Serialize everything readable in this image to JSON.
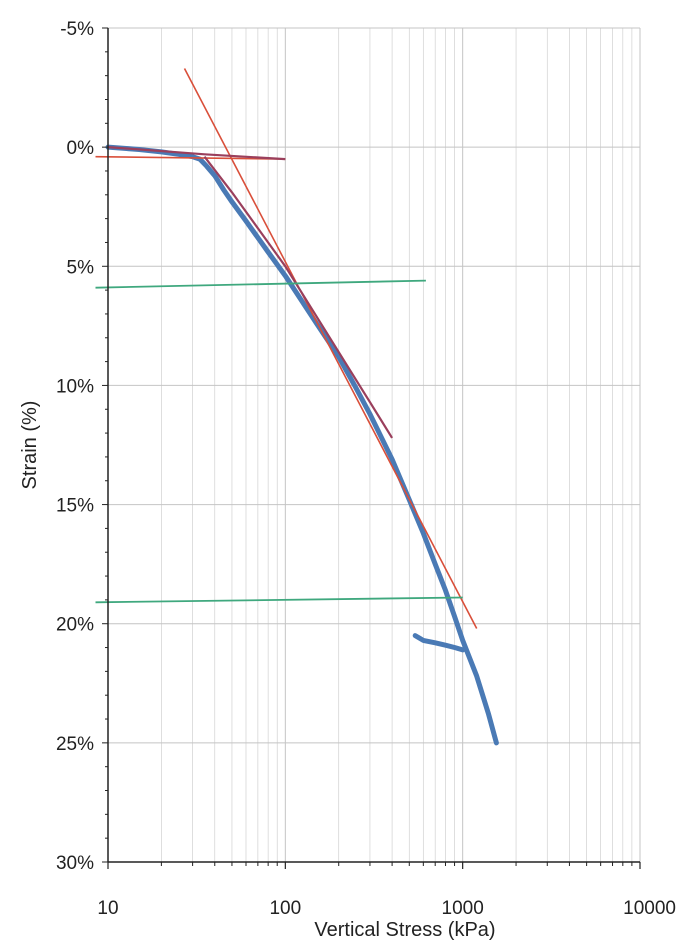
{
  "chart_data": {
    "type": "scatter",
    "title": "",
    "xlabel": "Vertical Stress (kPa)",
    "ylabel": "Strain (%)",
    "x_scale": "log",
    "xlim": [
      10,
      10000
    ],
    "ylim": [
      -5,
      30
    ],
    "y_reversed": true,
    "grid": true,
    "x_ticks": [
      10,
      100,
      1000,
      10000
    ],
    "x_tick_labels": [
      "10",
      "100",
      "1000",
      "10000"
    ],
    "y_ticks": [
      -5,
      0,
      5,
      10,
      15,
      20,
      25,
      30
    ],
    "y_tick_labels": [
      "-5%",
      "0%",
      "5%",
      "10%",
      "15%",
      "20%",
      "25%",
      "30%"
    ],
    "colors": {
      "data": "#4a7ab5",
      "fit_red": "#d94f3a",
      "fit_dark": "#9a3f5c",
      "fit_green": "#3fa87e",
      "grid": "#d0d0d0",
      "axis": "#222222"
    },
    "series": [
      {
        "style": "data",
        "x": [
          10,
          15,
          20,
          25,
          30,
          33,
          36,
          40,
          45,
          50,
          60,
          70,
          80,
          100,
          120,
          150,
          200,
          250,
          300,
          400,
          500,
          600,
          700,
          800,
          900,
          1000,
          1200,
          1400,
          1550
        ],
        "y": [
          0.0,
          0.1,
          0.2,
          0.3,
          0.4,
          0.5,
          0.8,
          1.2,
          1.8,
          2.3,
          3.1,
          3.8,
          4.4,
          5.4,
          6.3,
          7.4,
          8.8,
          10.1,
          11.2,
          13.1,
          14.8,
          16.2,
          17.5,
          18.6,
          19.7,
          20.7,
          22.2,
          23.8,
          25.0
        ]
      },
      {
        "style": "data",
        "x": [
          540,
          600,
          700,
          800,
          900,
          1000
        ],
        "y": [
          20.5,
          20.7,
          20.8,
          20.9,
          21.0,
          21.1
        ]
      },
      {
        "style": "fit_red",
        "x": [
          27,
          1200
        ],
        "y": [
          -3.3,
          20.2
        ]
      },
      {
        "style": "fit_red",
        "x": [
          8.5,
          100
        ],
        "y": [
          0.4,
          0.5
        ]
      },
      {
        "style": "fit_dark",
        "x": [
          10,
          35,
          100
        ],
        "y": [
          0.0,
          0.3,
          0.5
        ]
      },
      {
        "style": "fit_dark",
        "x": [
          35,
          50,
          100,
          200,
          300,
          400
        ],
        "y": [
          0.4,
          1.9,
          5.0,
          8.6,
          10.7,
          12.2
        ]
      },
      {
        "style": "fit_green",
        "x": [
          8.5,
          620
        ],
        "y": [
          5.9,
          5.6
        ]
      },
      {
        "style": "fit_green",
        "x": [
          8.5,
          1000
        ],
        "y": [
          19.1,
          18.9
        ]
      }
    ]
  }
}
